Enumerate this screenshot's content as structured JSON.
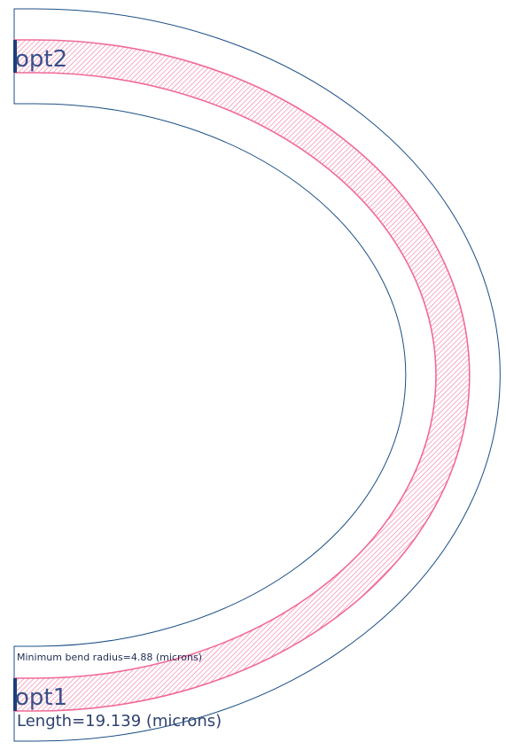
{
  "ports": {
    "top": "opt2",
    "bottom": "opt1"
  },
  "annotations": {
    "min_bend_radius": "Minimum bend radius=4.88 (microns)",
    "length": "Length=19.139 (microns)"
  },
  "colors": {
    "cladding_outline": "#1b4f86",
    "core_outline": "#f06a98",
    "core_hatch": "#f06a98",
    "port_marker": "#1d3f78",
    "label_text": "#3c4f8a"
  }
}
